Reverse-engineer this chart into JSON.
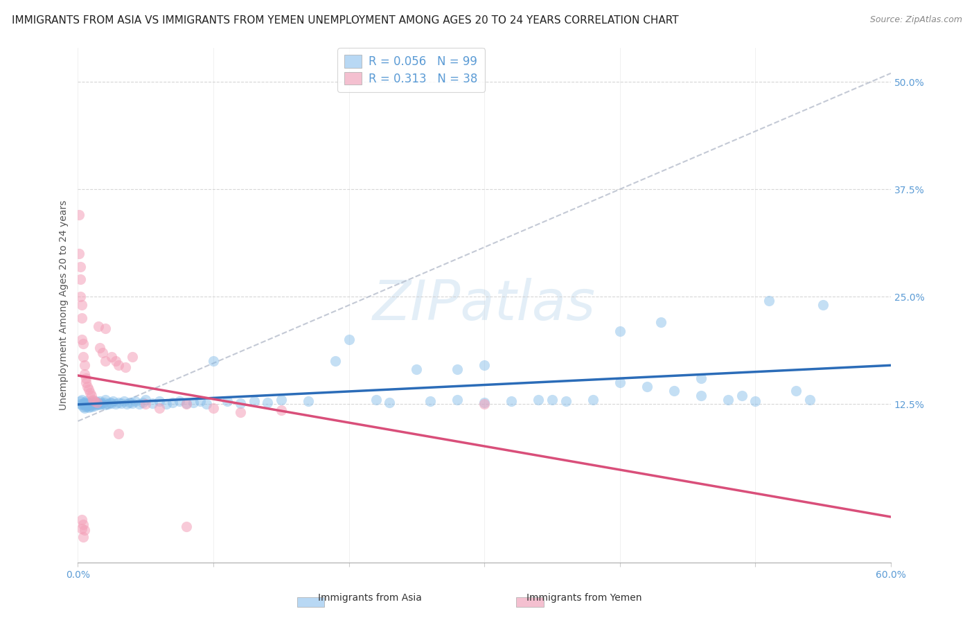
{
  "title": "IMMIGRANTS FROM ASIA VS IMMIGRANTS FROM YEMEN UNEMPLOYMENT AMONG AGES 20 TO 24 YEARS CORRELATION CHART",
  "source": "Source: ZipAtlas.com",
  "ylabel": "Unemployment Among Ages 20 to 24 years",
  "xlim": [
    0.0,
    0.6
  ],
  "ylim": [
    -0.06,
    0.54
  ],
  "yticks": [
    0.125,
    0.25,
    0.375,
    0.5
  ],
  "ytick_labels": [
    "12.5%",
    "25.0%",
    "37.5%",
    "50.0%"
  ],
  "xticks": [
    0.0,
    0.1,
    0.2,
    0.3,
    0.4,
    0.5,
    0.6
  ],
  "xtick_labels": [
    "0.0%",
    "",
    "",
    "",
    "",
    "",
    "60.0%"
  ],
  "legend_R1": "R = 0.056",
  "legend_N1": "N = 99",
  "legend_R2": "R = 0.313",
  "legend_N2": "N = 38",
  "blue_scatter_color": "#7db8e8",
  "pink_scatter_color": "#f4a0b8",
  "trend_blue_color": "#2b6cb8",
  "trend_pink_color": "#d94f7a",
  "trend_gray_color": "#b0b8c8",
  "legend_blue_fill": "#b8d8f4",
  "legend_pink_fill": "#f4c0d0",
  "watermark_color": "#c8dff0",
  "title_fontsize": 11,
  "source_fontsize": 9,
  "axis_label_fontsize": 10,
  "tick_fontsize": 10,
  "legend_fontsize": 12,
  "background_color": "#ffffff",
  "grid_color": "#cccccc",
  "tick_color": "#5b9bd5",
  "ylabel_color": "#555555",
  "asia_x": [
    0.002,
    0.002,
    0.003,
    0.003,
    0.004,
    0.004,
    0.005,
    0.005,
    0.005,
    0.006,
    0.006,
    0.006,
    0.007,
    0.007,
    0.008,
    0.008,
    0.008,
    0.009,
    0.009,
    0.01,
    0.01,
    0.01,
    0.011,
    0.011,
    0.012,
    0.012,
    0.013,
    0.013,
    0.014,
    0.014,
    0.015,
    0.015,
    0.016,
    0.016,
    0.017,
    0.018,
    0.019,
    0.02,
    0.02,
    0.022,
    0.024,
    0.025,
    0.026,
    0.028,
    0.03,
    0.032,
    0.034,
    0.036,
    0.038,
    0.04,
    0.042,
    0.045,
    0.048,
    0.05,
    0.055,
    0.06,
    0.065,
    0.07,
    0.075,
    0.08,
    0.085,
    0.09,
    0.095,
    0.1,
    0.11,
    0.12,
    0.13,
    0.14,
    0.15,
    0.17,
    0.19,
    0.2,
    0.22,
    0.23,
    0.25,
    0.26,
    0.28,
    0.3,
    0.32,
    0.34,
    0.36,
    0.38,
    0.4,
    0.42,
    0.44,
    0.46,
    0.48,
    0.5,
    0.53,
    0.55,
    0.28,
    0.3,
    0.35,
    0.4,
    0.43,
    0.46,
    0.49,
    0.51,
    0.54
  ],
  "asia_y": [
    0.125,
    0.128,
    0.124,
    0.13,
    0.126,
    0.122,
    0.127,
    0.124,
    0.12,
    0.126,
    0.122,
    0.128,
    0.125,
    0.123,
    0.127,
    0.124,
    0.121,
    0.126,
    0.123,
    0.128,
    0.125,
    0.122,
    0.127,
    0.124,
    0.126,
    0.123,
    0.128,
    0.125,
    0.126,
    0.124,
    0.127,
    0.125,
    0.128,
    0.124,
    0.126,
    0.125,
    0.127,
    0.13,
    0.124,
    0.125,
    0.127,
    0.126,
    0.128,
    0.125,
    0.127,
    0.126,
    0.128,
    0.125,
    0.127,
    0.126,
    0.128,
    0.125,
    0.127,
    0.13,
    0.126,
    0.128,
    0.125,
    0.127,
    0.128,
    0.126,
    0.127,
    0.128,
    0.125,
    0.175,
    0.128,
    0.126,
    0.128,
    0.127,
    0.13,
    0.128,
    0.175,
    0.2,
    0.13,
    0.127,
    0.165,
    0.128,
    0.13,
    0.127,
    0.128,
    0.13,
    0.128,
    0.13,
    0.15,
    0.145,
    0.14,
    0.135,
    0.13,
    0.128,
    0.14,
    0.24,
    0.165,
    0.17,
    0.13,
    0.21,
    0.22,
    0.155,
    0.135,
    0.245,
    0.13
  ],
  "yemen_x": [
    0.001,
    0.001,
    0.002,
    0.002,
    0.002,
    0.003,
    0.003,
    0.003,
    0.004,
    0.004,
    0.005,
    0.005,
    0.006,
    0.006,
    0.007,
    0.008,
    0.009,
    0.01,
    0.011,
    0.012,
    0.014,
    0.015,
    0.016,
    0.018,
    0.02,
    0.02,
    0.025,
    0.028,
    0.03,
    0.035,
    0.04,
    0.05,
    0.06,
    0.08,
    0.1,
    0.12,
    0.15,
    0.3
  ],
  "yemen_y": [
    0.345,
    0.3,
    0.285,
    0.27,
    0.25,
    0.24,
    0.225,
    0.2,
    0.195,
    0.18,
    0.17,
    0.16,
    0.155,
    0.15,
    0.145,
    0.142,
    0.138,
    0.135,
    0.13,
    0.128,
    0.127,
    0.215,
    0.19,
    0.185,
    0.175,
    0.213,
    0.18,
    0.175,
    0.17,
    0.168,
    0.18,
    0.125,
    0.12,
    0.125,
    0.12,
    0.115,
    0.118,
    0.125
  ],
  "yemen_below_x": [
    0.003,
    0.003,
    0.004,
    0.004,
    0.005,
    0.03,
    0.08
  ],
  "yemen_below_y": [
    -0.01,
    -0.02,
    -0.015,
    -0.03,
    -0.022,
    0.09,
    -0.018
  ],
  "gray_line_x0": 0.0,
  "gray_line_y0": 0.105,
  "gray_line_x1": 0.6,
  "gray_line_y1": 0.51
}
